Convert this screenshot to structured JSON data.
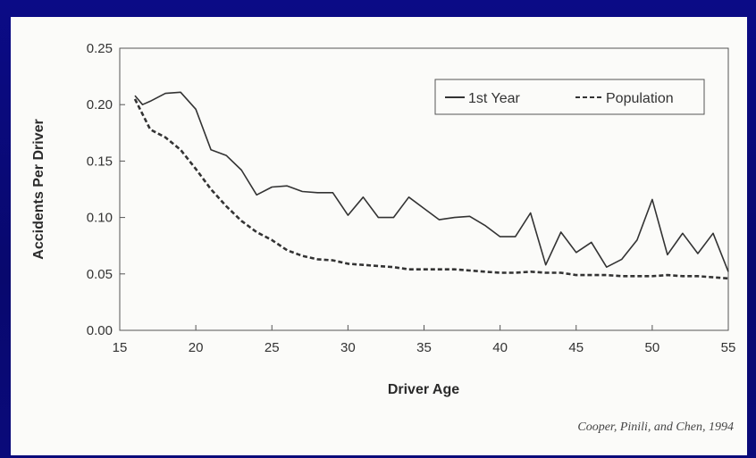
{
  "slide": {
    "background_color": "#0a0a7e",
    "panel_color": "#fbfbf9"
  },
  "chart_data": {
    "type": "line",
    "xlabel": "Driver Age",
    "ylabel": "Accidents Per Driver",
    "xlim": [
      15,
      55
    ],
    "ylim": [
      0,
      0.25
    ],
    "x_ticks": [
      15,
      20,
      25,
      30,
      35,
      40,
      45,
      50,
      55
    ],
    "y_ticks": [
      0.0,
      0.05,
      0.1,
      0.15,
      0.2,
      0.25
    ],
    "x_tick_labels": [
      "15",
      "20",
      "25",
      "30",
      "35",
      "40",
      "45",
      "50",
      "55"
    ],
    "y_tick_labels": [
      "0.00",
      "0.05",
      "0.10",
      "0.15",
      "0.20",
      "0.25"
    ],
    "grid": false,
    "legend_position": "top-right",
    "series": [
      {
        "name": "1st Year",
        "style": "solid",
        "color": "#333333",
        "x": [
          16,
          16.5,
          17,
          18,
          19,
          20,
          21,
          22,
          23,
          24,
          25,
          26,
          27,
          28,
          29,
          30,
          31,
          32,
          33,
          34,
          35,
          36,
          37,
          38,
          39,
          40,
          41,
          42,
          43,
          44,
          45,
          46,
          47,
          48,
          49,
          50,
          51,
          52,
          53,
          54,
          55
        ],
        "y": [
          0.208,
          0.2,
          0.203,
          0.21,
          0.211,
          0.196,
          0.16,
          0.155,
          0.142,
          0.12,
          0.127,
          0.128,
          0.123,
          0.122,
          0.122,
          0.102,
          0.118,
          0.1,
          0.1,
          0.118,
          0.108,
          0.098,
          0.1,
          0.101,
          0.093,
          0.083,
          0.083,
          0.104,
          0.058,
          0.087,
          0.069,
          0.078,
          0.056,
          0.063,
          0.08,
          0.116,
          0.067,
          0.086,
          0.068,
          0.086,
          0.052
        ]
      },
      {
        "name": "Population",
        "style": "dashed",
        "color": "#333333",
        "x": [
          16,
          17,
          18,
          19,
          20,
          21,
          22,
          23,
          24,
          25,
          26,
          27,
          28,
          29,
          30,
          31,
          32,
          33,
          34,
          35,
          36,
          37,
          38,
          39,
          40,
          41,
          42,
          43,
          44,
          45,
          46,
          47,
          48,
          49,
          50,
          51,
          52,
          53,
          54,
          55
        ],
        "y": [
          0.205,
          0.178,
          0.171,
          0.16,
          0.143,
          0.125,
          0.11,
          0.097,
          0.087,
          0.08,
          0.071,
          0.066,
          0.063,
          0.062,
          0.059,
          0.058,
          0.057,
          0.056,
          0.054,
          0.054,
          0.054,
          0.054,
          0.053,
          0.052,
          0.051,
          0.051,
          0.052,
          0.051,
          0.051,
          0.049,
          0.049,
          0.049,
          0.048,
          0.048,
          0.048,
          0.049,
          0.048,
          0.048,
          0.047,
          0.046
        ]
      }
    ],
    "annotations": [
      {
        "text": "Cooper, Pinili, and Chen, 1994",
        "position": "bottom-right"
      }
    ]
  }
}
